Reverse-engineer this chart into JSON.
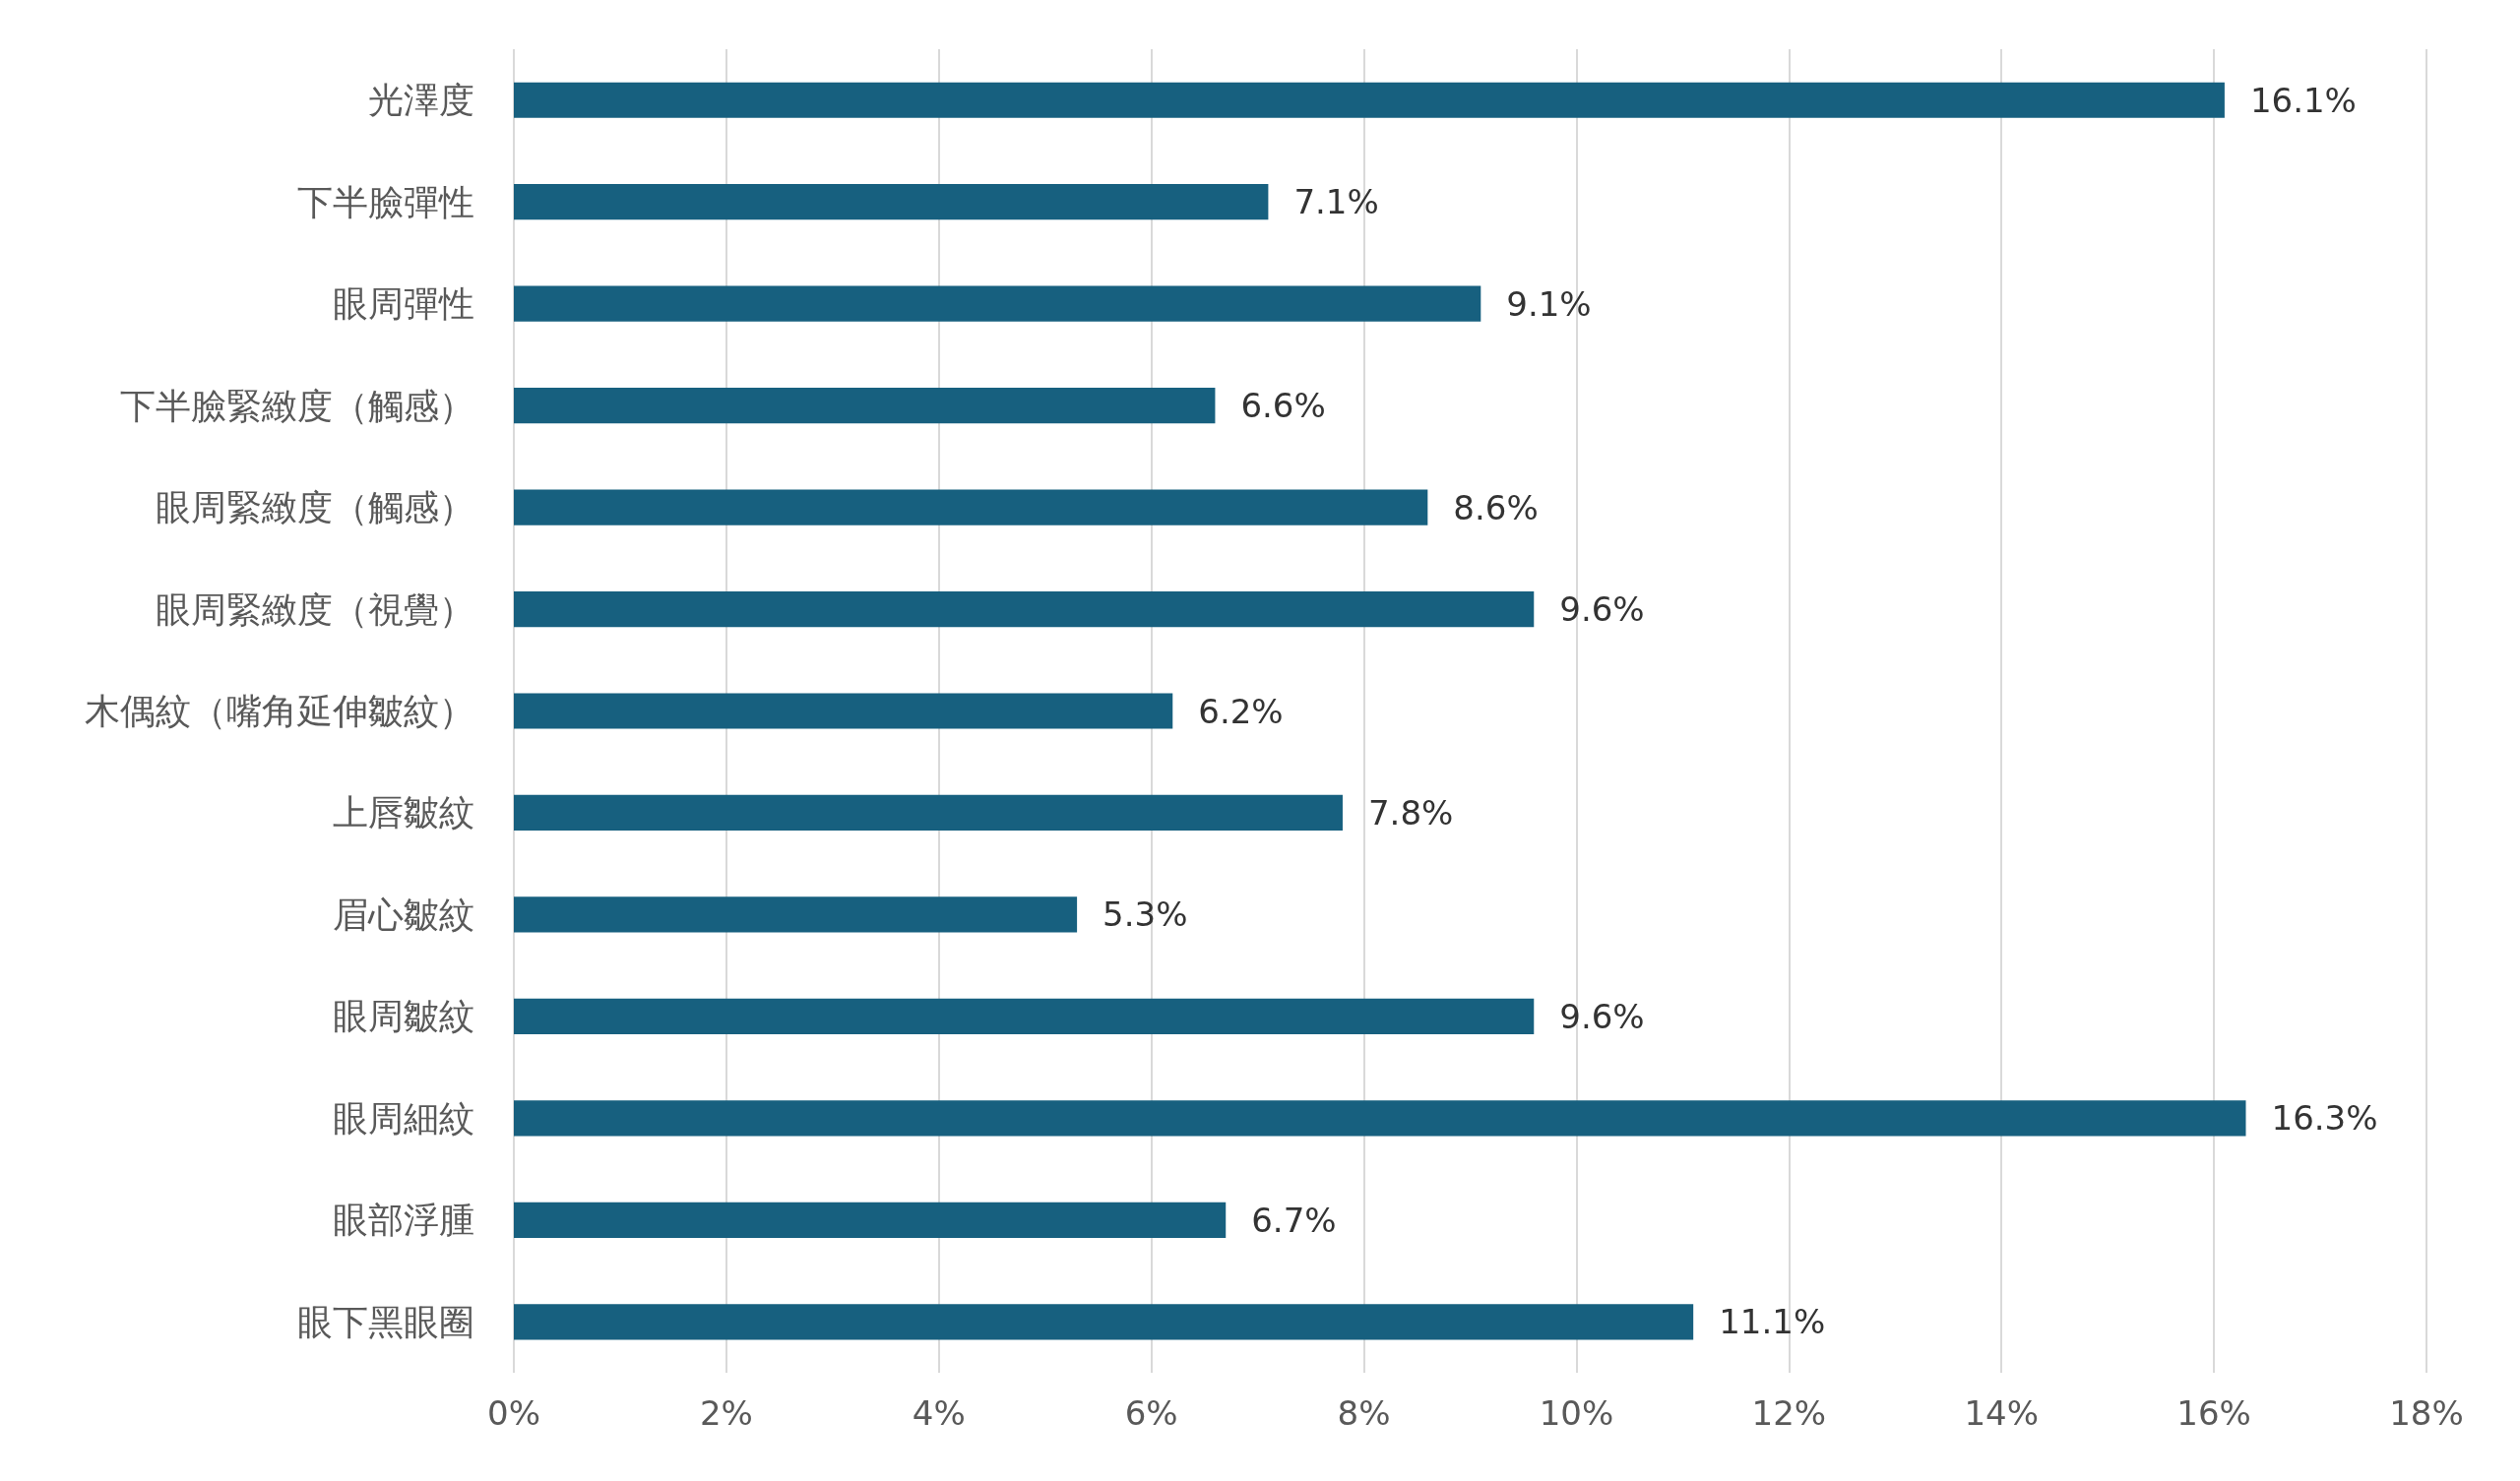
{
  "chart_data": {
    "type": "bar",
    "orientation": "horizontal",
    "categories": [
      "光澤度",
      "下半臉彈性",
      "眼周彈性",
      "下半臉緊緻度（觸感）",
      "眼周緊緻度（觸感）",
      "眼周緊緻度（視覺）",
      "木偶紋（嘴角延伸皺紋）",
      "上唇皺紋",
      "眉心皺紋",
      "眼周皺紋",
      "眼周細紋",
      "眼部浮腫",
      "眼下黑眼圈"
    ],
    "values": [
      16.1,
      7.1,
      9.1,
      6.6,
      8.6,
      9.6,
      6.2,
      7.8,
      5.3,
      9.6,
      16.3,
      6.7,
      11.1
    ],
    "value_labels": [
      "16.1%",
      "7.1%",
      "9.1%",
      "6.6%",
      "8.6%",
      "9.6%",
      "6.2%",
      "7.8%",
      "5.3%",
      "9.6%",
      "16.3%",
      "6.7%",
      "11.1%"
    ],
    "color": "#17607f",
    "xlim": [
      0,
      18
    ],
    "xticks": [
      {
        "value": 0,
        "label": "0%"
      },
      {
        "value": 2,
        "label": "2%"
      },
      {
        "value": 4,
        "label": "4%"
      },
      {
        "value": 6,
        "label": "6%"
      },
      {
        "value": 8,
        "label": "8%"
      },
      {
        "value": 10,
        "label": "10%"
      },
      {
        "value": 12,
        "label": "12%"
      },
      {
        "value": 14,
        "label": "14%"
      },
      {
        "value": 16,
        "label": "16%"
      },
      {
        "value": 18,
        "label": "18%"
      }
    ],
    "grid": "x"
  }
}
